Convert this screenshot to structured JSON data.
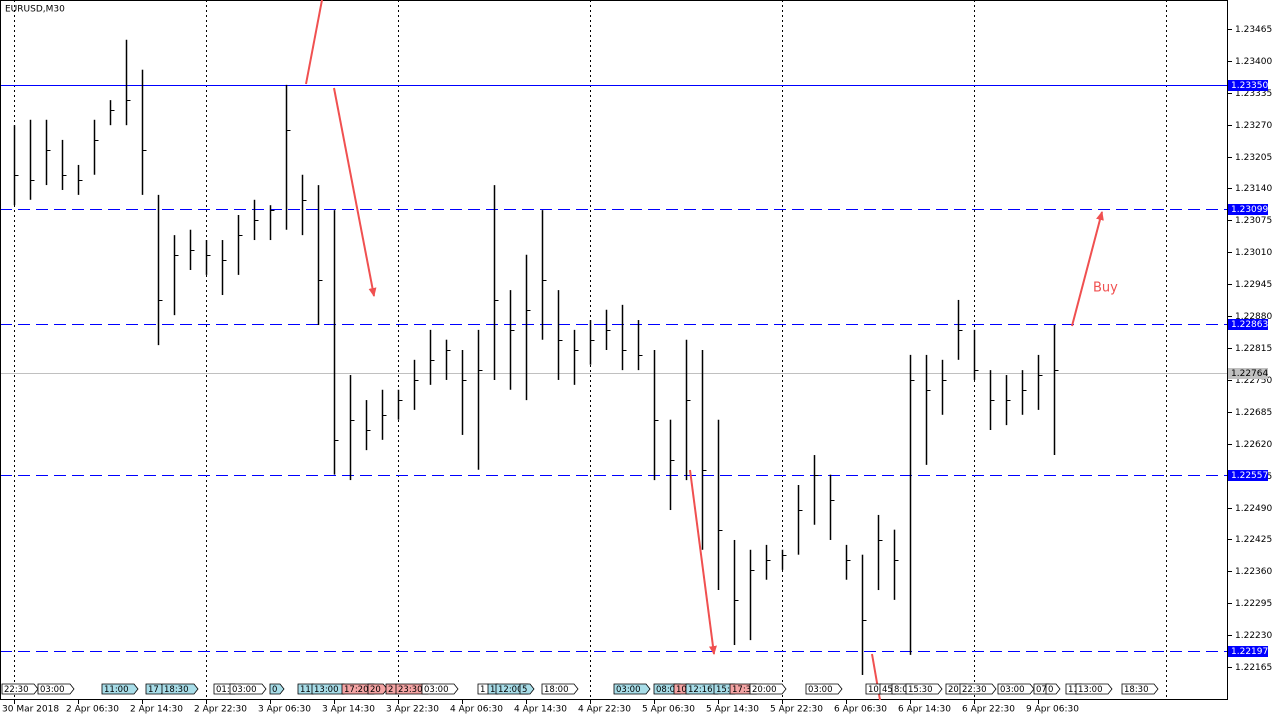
{
  "chart_data": {
    "type": "hlc",
    "title": "EURUSD,M30",
    "categories": [
      "30 Mar 2018",
      null,
      null,
      null,
      "2 Apr 06:30",
      null,
      null,
      null,
      "2 Apr 14:30",
      null,
      null,
      null,
      "2 Apr 22:30",
      null,
      null,
      null,
      "3 Apr 06:30",
      null,
      null,
      null,
      "3 Apr 14:30",
      null,
      null,
      null,
      "3 Apr 22:30",
      null,
      null,
      null,
      "4 Apr 06:30",
      null,
      null,
      null,
      "4 Apr 14:30",
      null,
      null,
      null,
      "4 Apr 22:30",
      null,
      null,
      null,
      "5 Apr 06:30",
      null,
      null,
      null,
      "5 Apr 14:30",
      null,
      null,
      null,
      "5 Apr 22:30",
      null,
      null,
      null,
      "6 Apr 06:30",
      null,
      null,
      null,
      "6 Apr 14:30",
      null,
      null,
      null,
      "6 Apr 22:30",
      null,
      null,
      null,
      "9 Apr 06:30",
      null
    ],
    "high": [
      1.23269,
      1.2328,
      1.2328,
      1.23239,
      1.23188,
      1.2328,
      1.2332,
      1.23443,
      1.23382,
      1.23127,
      1.23045,
      1.23056,
      1.23035,
      1.23035,
      1.23086,
      1.23117,
      1.23106,
      1.23351,
      1.23168,
      1.23147,
      1.23096,
      1.2276,
      1.22709,
      1.2273,
      1.2273,
      1.22791,
      1.22852,
      1.22832,
      1.22811,
      1.22852,
      1.23147,
      1.22933,
      1.23005,
      1.23096,
      1.22933,
      1.22852,
      1.22872,
      1.22893,
      1.22903,
      1.22872,
      1.22811,
      1.22669,
      1.22832,
      1.22811,
      1.22669,
      1.22424,
      1.22404,
      1.22414,
      1.22404,
      1.22536,
      1.22597,
      1.22557,
      1.22414,
      1.22394,
      1.22475,
      1.22445,
      1.22801,
      1.22801,
      1.22791,
      1.22913,
      1.22852,
      1.2277,
      1.2276,
      1.2277,
      1.22801,
      1.22862
    ],
    "low": [
      1.23106,
      1.23117,
      1.23147,
      1.23137,
      1.23127,
      1.23168,
      1.23269,
      1.23269,
      1.23127,
      1.22821,
      1.22882,
      1.22974,
      1.22964,
      1.22923,
      1.22964,
      1.23035,
      1.23035,
      1.23056,
      1.23045,
      1.22862,
      1.22557,
      1.22546,
      1.22607,
      1.22628,
      1.22669,
      1.22689,
      1.2274,
      1.2275,
      1.22638,
      1.22567,
      1.2275,
      1.2273,
      1.22709,
      1.22832,
      1.2275,
      1.2274,
      1.22781,
      1.22811,
      1.2277,
      1.2277,
      1.22546,
      1.22485,
      1.22546,
      1.22404,
      1.22322,
      1.2221,
      1.2222,
      1.22343,
      1.22363,
      1.22394,
      1.22455,
      1.22424,
      1.22343,
      1.22149,
      1.22322,
      1.22302,
      1.2219,
      1.22577,
      1.22679,
      1.22791,
      1.2275,
      1.22648,
      1.22658,
      1.22679,
      1.22689,
      1.22597
    ],
    "close": [
      1.23168,
      1.23157,
      1.23219,
      1.23168,
      1.23157,
      1.23239,
      1.233,
      1.2332,
      1.23219,
      1.22913,
      1.23005,
      1.23015,
      1.23005,
      1.22995,
      1.23045,
      1.23076,
      1.23096,
      1.23259,
      1.23117,
      1.22954,
      1.22628,
      1.22669,
      1.22648,
      1.22679,
      1.22709,
      1.2275,
      1.22791,
      1.22811,
      1.2275,
      1.2277,
      1.22913,
      1.22852,
      1.22893,
      1.22954,
      1.22832,
      1.22811,
      1.22832,
      1.22852,
      1.22811,
      1.22801,
      1.22669,
      1.22587,
      1.22709,
      1.22567,
      1.22445,
      1.22302,
      1.22363,
      1.22383,
      1.22394,
      1.22485,
      1.22557,
      1.22506,
      1.22383,
      1.22261,
      1.22424,
      1.22383,
      1.2275,
      1.2273,
      1.2275,
      1.22852,
      1.2277,
      1.22709,
      1.22709,
      1.2273,
      1.2276,
      1.2277
    ],
    "color": "#000000",
    "ylim": [
      1.22098,
      1.23524
    ],
    "yticks": [
      1.23465,
      {
        "value": 1.234,
        "label": "1.23400"
      },
      1.23335,
      {
        "value": 1.2327,
        "label": "1.23270"
      },
      1.23205,
      {
        "value": 1.2314,
        "label": "1.23140"
      },
      1.23075,
      {
        "value": 1.2301,
        "label": "1.23010"
      },
      1.22945,
      {
        "value": 1.2288,
        "label": "1.22880"
      },
      1.22815,
      {
        "value": 1.2275,
        "label": "1.22750"
      },
      1.22685,
      {
        "value": 1.2262,
        "label": "1.22620"
      },
      1.22555,
      {
        "value": 1.2249,
        "label": "1.22490"
      },
      1.22425,
      {
        "value": 1.2236,
        "label": "1.22360"
      },
      1.22295,
      {
        "value": 1.2223,
        "label": "1.22230"
      },
      1.22165
    ],
    "levels": [
      {
        "value": 1.2335,
        "label": "1.23350",
        "style": "solid",
        "color": "#0000ff"
      },
      {
        "value": 1.23099,
        "label": "1.23099",
        "style": "dashed",
        "color": "#0000ff"
      },
      {
        "value": 1.22863,
        "label": "1.22863",
        "style": "dashed",
        "color": "#0000ff"
      },
      {
        "value": 1.22557,
        "label": "1.22557",
        "style": "dashed",
        "color": "#0000ff"
      },
      {
        "value": 1.22197,
        "label": "1.22197",
        "style": "dashed",
        "color": "#0000ff"
      }
    ],
    "current_price": {
      "value": 1.22764,
      "label": "1.22764",
      "color": "#c0c0c0"
    },
    "annotation": "Buy",
    "events": [
      {
        "label": "22:30",
        "color": "#ffffff"
      },
      {
        "label": "03:00",
        "color": "#ffffff"
      },
      {
        "label": "11:00",
        "color": "#a8dde8"
      },
      {
        "label": "17",
        "color": "#a8dde8"
      },
      {
        "label": "18:30",
        "color": "#a8dde8"
      },
      {
        "label": "01:",
        "color": "#ffffff"
      },
      {
        "label": "03:00",
        "color": "#ffffff"
      },
      {
        "label": "0",
        "color": "#a8dde8"
      },
      {
        "label": "11",
        "color": "#a8dde8"
      },
      {
        "label": "13:00",
        "color": "#a8dde8"
      },
      {
        "label": "17:20",
        "color": "#f4a4a4"
      },
      {
        "label": "20",
        "color": "#f4a4a4"
      },
      {
        "label": "2",
        "color": "#f4a4a4"
      },
      {
        "label": "23:30",
        "color": "#f4a4a4"
      },
      {
        "label": "03:00",
        "color": "#ffffff"
      },
      {
        "label": "1",
        "color": "#ffffff"
      },
      {
        "label": "1",
        "color": "#a8dde8"
      },
      {
        "label": "12:00",
        "color": "#a8dde8"
      },
      {
        "label": "5",
        "color": "#a8dde8"
      },
      {
        "label": "18:00",
        "color": "#ffffff"
      },
      {
        "label": "03:00",
        "color": "#a8dde8"
      },
      {
        "label": "08:0",
        "color": "#a8dde8"
      },
      {
        "label": "10",
        "color": "#f4a4a4"
      },
      {
        "label": "12:16",
        "color": "#a8dde8"
      },
      {
        "label": "15:",
        "color": "#a8dde8"
      },
      {
        "label": "17:3",
        "color": "#f4a4a4"
      },
      {
        "label": "20:00",
        "color": "#ffffff"
      },
      {
        "label": "03:00",
        "color": "#ffffff"
      },
      {
        "label": "10",
        "color": "#ffffff"
      },
      {
        "label": "45",
        "color": "#ffffff"
      },
      {
        "label": "8:0",
        "color": "#ffffff"
      },
      {
        "label": "15:30",
        "color": "#ffffff"
      },
      {
        "label": "20:",
        "color": "#ffffff"
      },
      {
        "label": "22:30",
        "color": "#ffffff"
      },
      {
        "label": "03:00",
        "color": "#ffffff"
      },
      {
        "label": "07",
        "color": "#ffffff"
      },
      {
        "label": "0",
        "color": "#ffffff"
      },
      {
        "label": "11",
        "color": "#ffffff"
      },
      {
        "label": "13:00",
        "color": "#ffffff"
      },
      {
        "label": "18:30",
        "color": "#ffffff"
      }
    ]
  }
}
